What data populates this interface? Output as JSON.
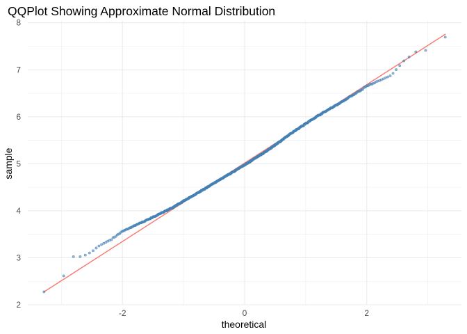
{
  "chart_data": {
    "type": "scatter",
    "title": "QQPlot Showing Approximate Normal Distribution",
    "xlabel": "theoretical",
    "ylabel": "sample",
    "xlim": [
      -3.55,
      3.55
    ],
    "ylim": [
      2.0,
      8.04
    ],
    "x_ticks": [
      -2,
      0,
      2
    ],
    "x_tick_labels": [
      "-2",
      "0",
      "2"
    ],
    "y_ticks": [
      2,
      3,
      4,
      5,
      6,
      7,
      8
    ],
    "y_tick_labels": [
      "2",
      "3",
      "4",
      "5",
      "6",
      "7",
      "8"
    ],
    "grid": true,
    "legend": "none",
    "colors": {
      "points": "#4682B4",
      "reference_line": "#F8766D",
      "grid": "#ebebeb"
    },
    "reference_line": {
      "x": [
        -3.29,
        3.29
      ],
      "y": [
        2.27,
        7.76
      ]
    },
    "quantile_profile": [
      {
        "x": -3.29,
        "y": 2.27
      },
      {
        "x": -3.0,
        "y": 2.52
      },
      {
        "x": -2.8,
        "y": 3.03
      },
      {
        "x": -2.7,
        "y": 3.02
      },
      {
        "x": -2.6,
        "y": 3.06
      },
      {
        "x": -2.5,
        "y": 3.13
      },
      {
        "x": -2.4,
        "y": 3.24
      },
      {
        "x": -2.2,
        "y": 3.38
      },
      {
        "x": -2.0,
        "y": 3.56
      },
      {
        "x": -1.6,
        "y": 3.8
      },
      {
        "x": -1.2,
        "y": 4.05
      },
      {
        "x": -0.8,
        "y": 4.35
      },
      {
        "x": -0.4,
        "y": 4.66
      },
      {
        "x": 0.0,
        "y": 4.97
      },
      {
        "x": 0.4,
        "y": 5.3
      },
      {
        "x": 0.8,
        "y": 5.68
      },
      {
        "x": 1.2,
        "y": 6.02
      },
      {
        "x": 1.6,
        "y": 6.32
      },
      {
        "x": 2.0,
        "y": 6.65
      },
      {
        "x": 2.4,
        "y": 6.88
      },
      {
        "x": 2.6,
        "y": 7.18
      },
      {
        "x": 2.8,
        "y": 7.38
      },
      {
        "x": 3.0,
        "y": 7.42
      },
      {
        "x": 3.29,
        "y": 7.7
      }
    ],
    "sample_size": 1000
  }
}
